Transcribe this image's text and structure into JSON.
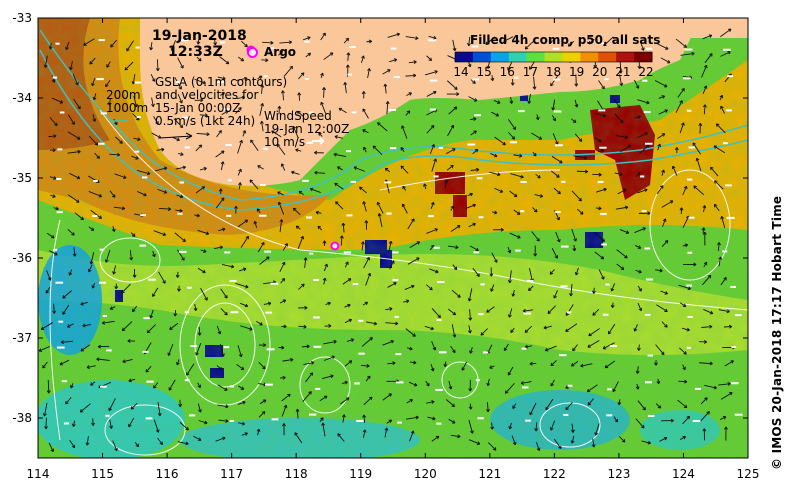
{
  "map": {
    "x_ticks": [
      "114",
      "115",
      "116",
      "117",
      "118",
      "119",
      "120",
      "121",
      "122",
      "123",
      "124",
      "125"
    ],
    "y_ticks": [
      "-33",
      "-34",
      "-35",
      "-36",
      "-37",
      "-38"
    ],
    "lon_range": [
      114,
      125
    ],
    "lat_range": [
      -38.5,
      -33
    ],
    "grid": false
  },
  "header": {
    "date": "19-Jan-2018",
    "time": "12:33Z"
  },
  "argo": {
    "label": "Argo",
    "marker_color": "#ff00ff",
    "positions": [
      [
        117.3,
        -33.4
      ],
      [
        118.6,
        -35.85
      ]
    ]
  },
  "annotations": {
    "gsla": "GSLA (0.1m contours)\nand velocities for\n15-Jan 00:00Z",
    "depth_contours": "200m\n1000m",
    "velocity_scale": "0.5m/s (1kt 24h)",
    "wind": "WindSpeed\n19-Jan 12:00Z\n10 m/s"
  },
  "colorbar": {
    "title": "Filled 4h comp, p50, all sats",
    "labels": [
      "14",
      "15",
      "16",
      "17",
      "18",
      "19",
      "20",
      "21",
      "22"
    ],
    "colors": [
      "#0a0a8c",
      "#0050d0",
      "#10a0e8",
      "#30d0b0",
      "#60e040",
      "#b0e020",
      "#f0d000",
      "#f09000",
      "#e05000",
      "#b01010",
      "#7a0000"
    ]
  },
  "credit": "© IMOS 20-Jan-2018 17:17 Hobart Time"
}
